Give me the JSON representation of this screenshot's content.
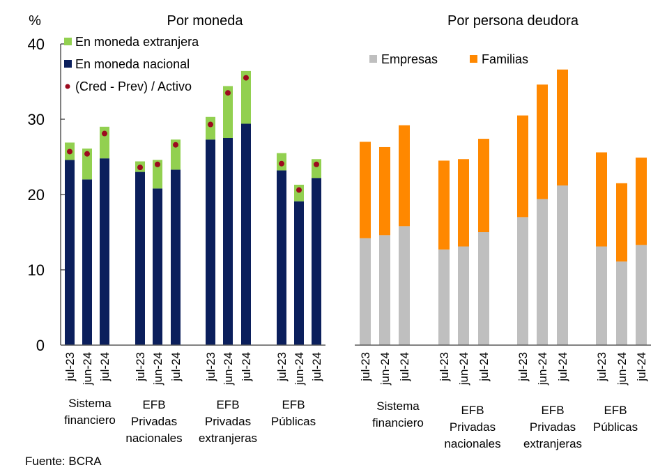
{
  "chart_data": [
    {
      "type": "bar",
      "stacked": true,
      "title": "Por moneda",
      "ylabel": "%",
      "ylim": [
        0,
        40
      ],
      "yticks": [
        "0",
        "10",
        "20",
        "30",
        "40"
      ],
      "grid": false,
      "legend_position": "top-left",
      "groups": [
        {
          "label_lines": [
            "Sistema",
            "financiero"
          ],
          "categories": [
            "jul-23",
            "jun-24",
            "jul-24"
          ]
        },
        {
          "label_lines": [
            "EFB",
            "Privadas",
            "nacionales"
          ],
          "categories": [
            "jul-23",
            "jun-24",
            "jul-24"
          ]
        },
        {
          "label_lines": [
            "EFB",
            "Privadas",
            "extranjeras"
          ],
          "categories": [
            "jul-23",
            "jun-24",
            "jul-24"
          ]
        },
        {
          "label_lines": [
            "EFB",
            "Públicas"
          ],
          "categories": [
            "jul-23",
            "jun-24",
            "jul-24"
          ]
        }
      ],
      "series": [
        {
          "name": "En moneda nacional",
          "kind": "bar",
          "color": "#0B1F5C",
          "values": [
            24.6,
            22.0,
            24.8,
            23.0,
            20.8,
            23.3,
            27.3,
            27.5,
            29.4,
            23.2,
            19.1,
            22.2
          ]
        },
        {
          "name": "En moneda extranjera",
          "kind": "bar",
          "color": "#92D050",
          "values": [
            2.3,
            4.1,
            4.2,
            1.4,
            3.8,
            4.0,
            3.0,
            6.9,
            7.0,
            2.3,
            2.2,
            2.5
          ]
        },
        {
          "name": "(Cred - Prev) / Activo",
          "kind": "point",
          "color": "#9C0A1E",
          "values": [
            25.7,
            25.4,
            28.1,
            23.6,
            24.0,
            26.6,
            29.3,
            33.5,
            35.5,
            24.1,
            20.6,
            24.0
          ]
        }
      ],
      "legend": [
        {
          "name": "En moneda extranjera",
          "marker": "square",
          "color": "#92D050"
        },
        {
          "name": "En moneda nacional",
          "marker": "square",
          "color": "#0B1F5C"
        },
        {
          "name": "(Cred - Prev) / Activo",
          "marker": "dot",
          "color": "#9C0A1E"
        }
      ]
    },
    {
      "type": "bar",
      "stacked": true,
      "title": "Por persona deudora",
      "ylim": [
        0,
        40
      ],
      "grid": false,
      "legend_position": "top",
      "groups": [
        {
          "label_lines": [
            "Sistema",
            "financiero"
          ],
          "categories": [
            "jul-23",
            "jun-24",
            "jul-24"
          ]
        },
        {
          "label_lines": [
            "EFB",
            "Privadas",
            "nacionales"
          ],
          "categories": [
            "jul-23",
            "jun-24",
            "jul-24"
          ]
        },
        {
          "label_lines": [
            "EFB",
            "Privadas",
            "extranjeras"
          ],
          "categories": [
            "jul-23",
            "jun-24",
            "jul-24"
          ]
        },
        {
          "label_lines": [
            "EFB",
            "Públicas"
          ],
          "categories": [
            "jul-23",
            "jun-24",
            "jul-24"
          ]
        }
      ],
      "series": [
        {
          "name": "Empresas",
          "kind": "bar",
          "color": "#BFBFBF",
          "values": [
            14.2,
            14.6,
            15.8,
            12.7,
            13.1,
            15.0,
            17.0,
            19.4,
            21.2,
            13.1,
            11.1,
            13.3
          ]
        },
        {
          "name": "Familias",
          "kind": "bar",
          "color": "#FF8800",
          "values": [
            12.8,
            11.7,
            13.4,
            11.8,
            11.6,
            12.4,
            13.5,
            15.2,
            15.4,
            12.5,
            10.4,
            11.6
          ]
        }
      ],
      "legend": [
        {
          "name": "Empresas",
          "marker": "square",
          "color": "#BFBFBF"
        },
        {
          "name": "Familias",
          "marker": "square",
          "color": "#FF8800"
        }
      ]
    }
  ],
  "footer": {
    "source": "Fuente: BCRA"
  }
}
